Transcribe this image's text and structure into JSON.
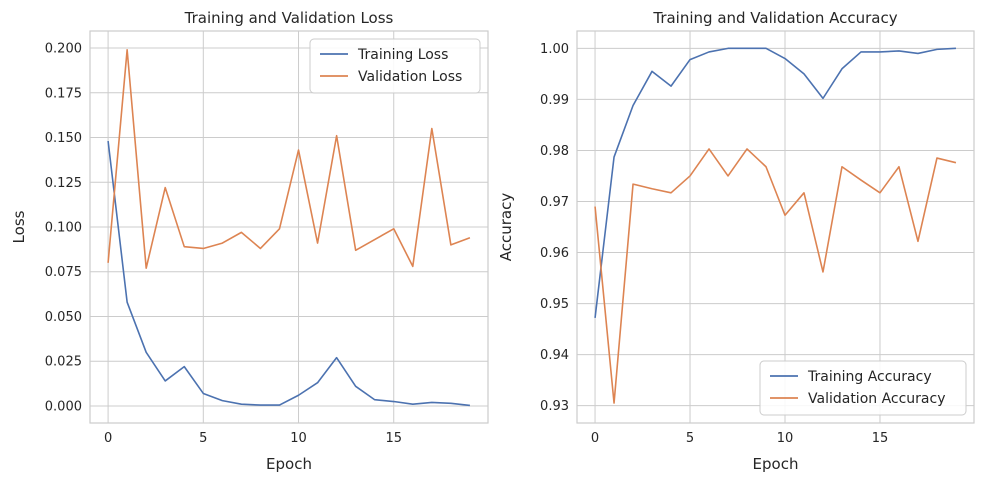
{
  "colors": {
    "training": "#4c72b0",
    "validation": "#dd8452",
    "grid": "#cccccc"
  },
  "chart_data": [
    {
      "type": "line",
      "title": "Training and Validation Loss",
      "xlabel": "Epoch",
      "ylabel": "Loss",
      "xlim": [
        -0.95,
        19.95
      ],
      "ylim": [
        -0.0095,
        0.2095
      ],
      "xticks": [
        0,
        5,
        10,
        15
      ],
      "yticks": [
        0.0,
        0.025,
        0.05,
        0.075,
        0.1,
        0.125,
        0.15,
        0.175,
        0.2
      ],
      "ytick_decimals": 3,
      "grid": true,
      "legend": "upper-right",
      "x": [
        0,
        1,
        2,
        3,
        4,
        5,
        6,
        7,
        8,
        9,
        10,
        11,
        12,
        13,
        14,
        15,
        16,
        17,
        18,
        19
      ],
      "series": [
        {
          "name": "Training Loss",
          "color": "#4c72b0",
          "values": [
            0.148,
            0.058,
            0.03,
            0.014,
            0.022,
            0.007,
            0.003,
            0.001,
            0.0005,
            0.0005,
            0.006,
            0.013,
            0.027,
            0.011,
            0.0035,
            0.0025,
            0.001,
            0.002,
            0.0015,
            0.0003
          ]
        },
        {
          "name": "Validation Loss",
          "color": "#dd8452",
          "values": [
            0.08,
            0.199,
            0.077,
            0.122,
            0.089,
            0.088,
            0.091,
            0.097,
            0.088,
            0.099,
            0.143,
            0.091,
            0.151,
            0.087,
            0.093,
            0.099,
            0.078,
            0.155,
            0.09,
            0.094
          ]
        }
      ]
    },
    {
      "type": "line",
      "title": "Training and Validation Accuracy",
      "xlabel": "Epoch",
      "ylabel": "Accuracy",
      "xlim": [
        -0.95,
        19.95
      ],
      "ylim": [
        0.9266,
        1.0034
      ],
      "xticks": [
        0,
        5,
        10,
        15
      ],
      "yticks": [
        0.93,
        0.94,
        0.95,
        0.96,
        0.97,
        0.98,
        0.99,
        1.0
      ],
      "ytick_decimals": 2,
      "grid": true,
      "legend": "lower-right",
      "x": [
        0,
        1,
        2,
        3,
        4,
        5,
        6,
        7,
        8,
        9,
        10,
        11,
        12,
        13,
        14,
        15,
        16,
        17,
        18,
        19
      ],
      "series": [
        {
          "name": "Training Accuracy",
          "color": "#4c72b0",
          "values": [
            0.9472,
            0.9787,
            0.9888,
            0.9955,
            0.9926,
            0.9978,
            0.9993,
            1.0,
            1.0,
            1.0,
            0.998,
            0.995,
            0.9902,
            0.996,
            0.9993,
            0.9993,
            0.9995,
            0.999,
            0.9998,
            1.0
          ]
        },
        {
          "name": "Validation Accuracy",
          "color": "#dd8452",
          "values": [
            0.969,
            0.9305,
            0.9734,
            0.9725,
            0.9717,
            0.975,
            0.9803,
            0.975,
            0.9803,
            0.9768,
            0.9673,
            0.9717,
            0.9562,
            0.9768,
            0.9742,
            0.9717,
            0.9768,
            0.9622,
            0.9785,
            0.9776
          ]
        }
      ]
    }
  ]
}
